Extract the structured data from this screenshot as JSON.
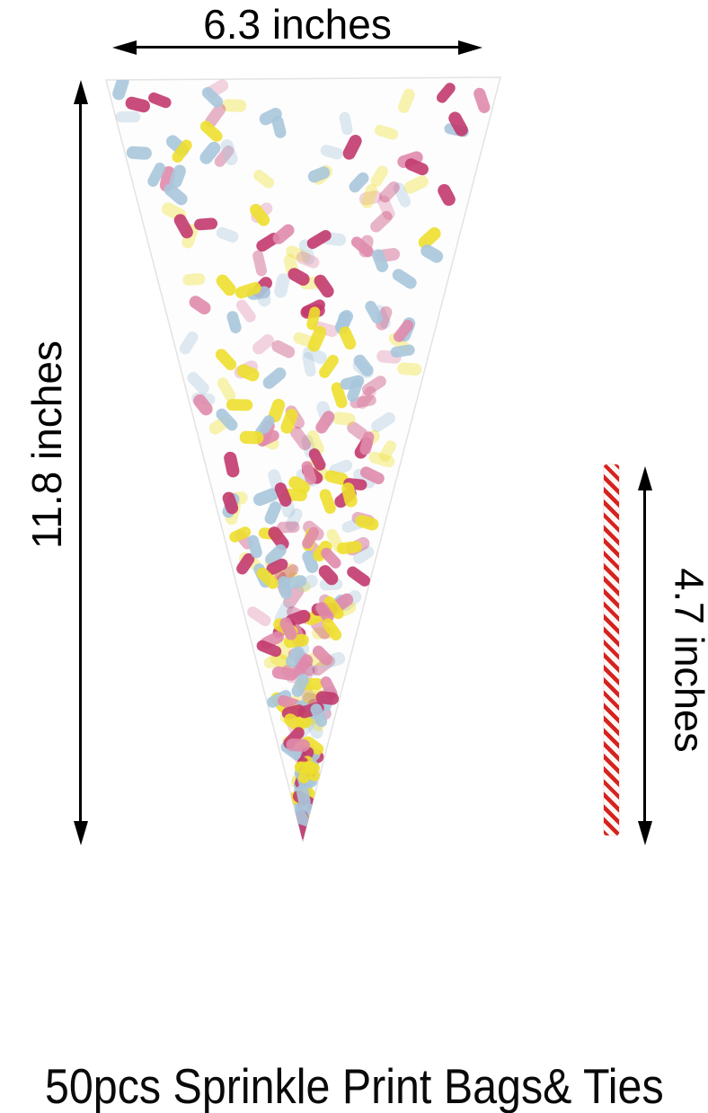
{
  "annotations": {
    "width": {
      "label": "6.3 inches"
    },
    "height": {
      "label": "11.8 inches"
    },
    "tie_length": {
      "label": "4.7 inches"
    },
    "arrow_color": "#000000"
  },
  "caption": {
    "text": "50pcs Sprinkle Print Bags& Ties"
  },
  "product": {
    "bag": "cone-shaped-clear-cello-bag-with-sprinkle-print",
    "tie": "red-white-striped-twist-tie"
  },
  "colors": {
    "bag_fill": "#FDFDFD",
    "bag_edge": "#E3E3E3",
    "tie_red": "#D6231F",
    "tie_white": "#FDF8F5"
  },
  "sprinkles": {
    "seed": 12345,
    "front_opacity": 0.9,
    "back_opacity": 0.38,
    "colors": [
      {
        "name": "yellow",
        "hex": "#EDDF2E",
        "weight": 0.3
      },
      {
        "name": "magenta",
        "hex": "#C23A6E",
        "weight": 0.27
      },
      {
        "name": "blue",
        "hex": "#A9C6DB",
        "weight": 0.26
      },
      {
        "name": "pink",
        "hex": "#E08BAC",
        "weight": 0.17
      }
    ]
  }
}
